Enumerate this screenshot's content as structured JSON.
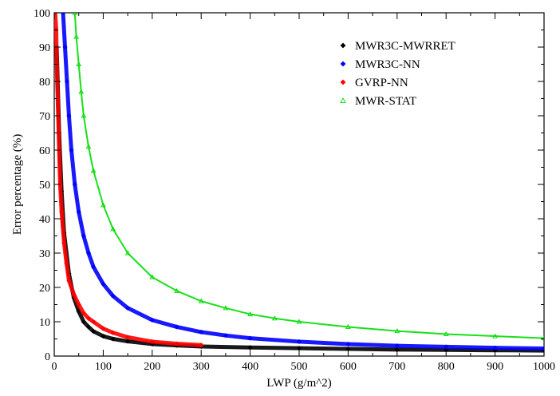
{
  "chart_data": {
    "type": "scatter",
    "title": "",
    "xlabel": "LWP (g/m^2)",
    "ylabel": "Error percentage (%)",
    "xlim": [
      0,
      1000
    ],
    "ylim": [
      0,
      100
    ],
    "xticks": [
      0,
      100,
      200,
      300,
      400,
      500,
      600,
      700,
      800,
      900,
      1000
    ],
    "yticks": [
      0,
      10,
      20,
      30,
      40,
      50,
      60,
      70,
      80,
      90,
      100
    ],
    "grid": false,
    "legend_position": "top-right",
    "series": [
      {
        "name": "MWR3C-MWRRET",
        "color": "#000000",
        "marker": "diamond",
        "points": [
          [
            5,
            90
          ],
          [
            10,
            65
          ],
          [
            15,
            48
          ],
          [
            20,
            36
          ],
          [
            30,
            24
          ],
          [
            40,
            17
          ],
          [
            50,
            13
          ],
          [
            60,
            10
          ],
          [
            70,
            8.5
          ],
          [
            80,
            7.2
          ],
          [
            100,
            5.8
          ],
          [
            120,
            5
          ],
          [
            150,
            4.3
          ],
          [
            200,
            3.5
          ],
          [
            250,
            3.1
          ],
          [
            300,
            2.8
          ],
          [
            400,
            2.5
          ],
          [
            500,
            2.3
          ],
          [
            600,
            2.1
          ],
          [
            700,
            1.9
          ],
          [
            800,
            1.8
          ],
          [
            900,
            1.7
          ],
          [
            1000,
            1.6
          ]
        ]
      },
      {
        "name": "MWR3C-NN",
        "color": "#0000ff",
        "marker": "diamond",
        "points": [
          [
            18,
            100
          ],
          [
            22,
            90
          ],
          [
            26,
            80
          ],
          [
            30,
            70
          ],
          [
            35,
            60
          ],
          [
            42,
            50
          ],
          [
            50,
            42
          ],
          [
            60,
            35
          ],
          [
            70,
            30
          ],
          [
            80,
            26
          ],
          [
            100,
            21
          ],
          [
            120,
            17.5
          ],
          [
            150,
            14
          ],
          [
            200,
            10.5
          ],
          [
            250,
            8.5
          ],
          [
            300,
            7
          ],
          [
            350,
            6
          ],
          [
            400,
            5.2
          ],
          [
            500,
            4.2
          ],
          [
            600,
            3.5
          ],
          [
            700,
            3
          ],
          [
            800,
            2.7
          ],
          [
            900,
            2.4
          ],
          [
            1000,
            2.2
          ]
        ]
      },
      {
        "name": "GVRP-NN",
        "color": "#ff0000",
        "marker": "diamond",
        "points": [
          [
            2,
            100
          ],
          [
            4,
            95
          ],
          [
            6,
            80
          ],
          [
            8,
            70
          ],
          [
            10,
            60
          ],
          [
            12,
            50
          ],
          [
            15,
            42
          ],
          [
            20,
            33
          ],
          [
            25,
            27
          ],
          [
            30,
            22
          ],
          [
            40,
            18
          ],
          [
            50,
            15
          ],
          [
            60,
            12.5
          ],
          [
            70,
            11
          ],
          [
            80,
            10
          ],
          [
            100,
            8
          ],
          [
            120,
            6.8
          ],
          [
            150,
            5.5
          ],
          [
            200,
            4.2
          ],
          [
            250,
            3.6
          ],
          [
            300,
            3.2
          ]
        ]
      },
      {
        "name": "MWR-STAT",
        "color": "#00dd00",
        "marker": "triangle",
        "points": [
          [
            42,
            100
          ],
          [
            45,
            93
          ],
          [
            50,
            85
          ],
          [
            55,
            77
          ],
          [
            60,
            70
          ],
          [
            70,
            61
          ],
          [
            80,
            54
          ],
          [
            100,
            44
          ],
          [
            120,
            37
          ],
          [
            150,
            30
          ],
          [
            200,
            23
          ],
          [
            250,
            19
          ],
          [
            300,
            16
          ],
          [
            350,
            14
          ],
          [
            400,
            12.2
          ],
          [
            450,
            11
          ],
          [
            500,
            10
          ],
          [
            600,
            8.5
          ],
          [
            700,
            7.3
          ],
          [
            800,
            6.4
          ],
          [
            900,
            5.8
          ],
          [
            1000,
            5.2
          ]
        ]
      }
    ]
  }
}
